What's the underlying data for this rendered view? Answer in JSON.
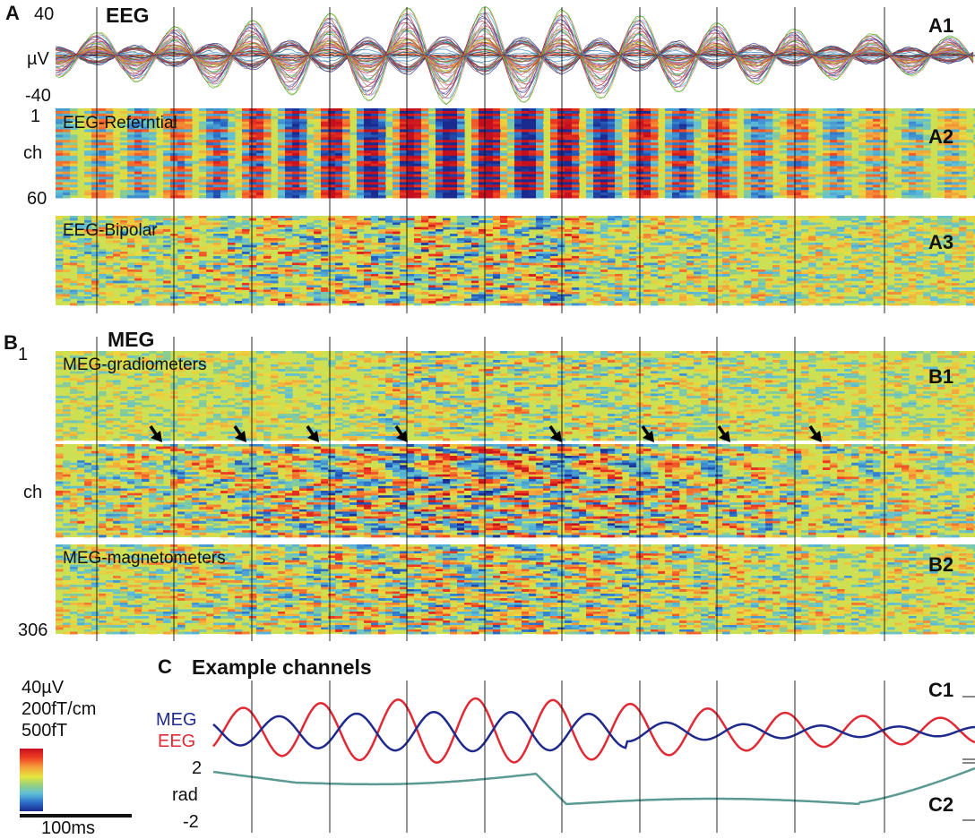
{
  "panels": {
    "A": {
      "letter": "A",
      "title": "EEG",
      "A1": {
        "tag": "A1",
        "ymax": "40",
        "unit": "µV",
        "ymin": "-40"
      },
      "A2": {
        "tag": "A2",
        "label": "EEG-Referntial",
        "ch_top": "1",
        "ch_mid": "ch",
        "ch_bottom": "60"
      },
      "A3": {
        "tag": "A3",
        "label": "EEG-Bipolar"
      }
    },
    "B": {
      "letter": "B",
      "title": "MEG",
      "B1": {
        "tag": "B1",
        "label": "MEG-gradiometers",
        "ch_top": "1",
        "ch_mid": "ch"
      },
      "B2": {
        "tag": "B2",
        "label": "MEG-magnetometers",
        "ch_bottom": "306"
      }
    },
    "C": {
      "letter": "C",
      "title": "Example channels",
      "C1": {
        "tag": "C1",
        "series_meg": "MEG",
        "series_eeg": "EEG"
      },
      "C2": {
        "tag": "C2",
        "ytop": "2",
        "unit": "rad",
        "ybottom": "-2"
      }
    }
  },
  "colorbar": {
    "scale_eeg": "40µV",
    "scale_grad": "200fT/cm",
    "scale_mag": "500fT",
    "time_scale": "100ms",
    "colors": [
      "#c40f1e",
      "#ef3b22",
      "#f4a23c",
      "#e7e63e",
      "#97d07c",
      "#5fbfd8",
      "#2b6fc9",
      "#1b2a8f"
    ]
  },
  "colors": {
    "meg": "#1f2a8c",
    "eeg": "#e02a35",
    "phase": "#5b9a93"
  }
}
